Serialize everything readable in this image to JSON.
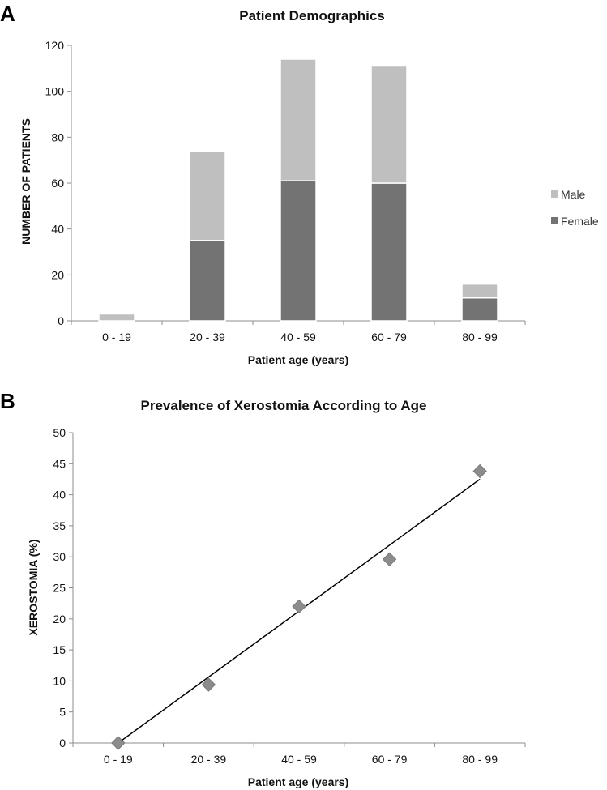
{
  "chart_data": [
    {
      "panel": "A",
      "type": "bar",
      "stacked": true,
      "title": "Patient Demographics",
      "xlabel": "Patient age (years)",
      "ylabel": "NUMBER OF PATIENTS",
      "categories": [
        "0 - 19",
        "20 - 39",
        "40 - 59",
        "60 - 79",
        "80 - 99"
      ],
      "series": [
        {
          "name": "Female",
          "values": [
            0,
            35,
            61,
            60,
            10
          ],
          "color": "#737373"
        },
        {
          "name": "Male",
          "values": [
            3,
            39,
            53,
            51,
            6
          ],
          "color": "#bfbfbf"
        }
      ],
      "ylim": [
        0,
        120
      ],
      "yticks": [
        0,
        20,
        40,
        60,
        80,
        100,
        120
      ],
      "legend": [
        "Male",
        "Female"
      ],
      "legend_position": "right",
      "grid": false
    },
    {
      "panel": "B",
      "type": "scatter",
      "title": "Prevalence of Xerostomia According to Age",
      "xlabel": "Patient age (years)",
      "ylabel": "XEROSTOMIA (%)",
      "categories": [
        "0 - 19",
        "20 - 39",
        "40 - 59",
        "60 - 79",
        "80 - 99"
      ],
      "values": [
        0,
        9.4,
        22,
        29.6,
        43.8
      ],
      "trendline": {
        "type": "linear",
        "start": 0,
        "end": 42.5
      },
      "marker": "diamond",
      "marker_color": "#8c8c8c",
      "ylim": [
        0,
        50
      ],
      "yticks": [
        0,
        5,
        10,
        15,
        20,
        25,
        30,
        35,
        40,
        45,
        50
      ],
      "grid": false
    }
  ]
}
